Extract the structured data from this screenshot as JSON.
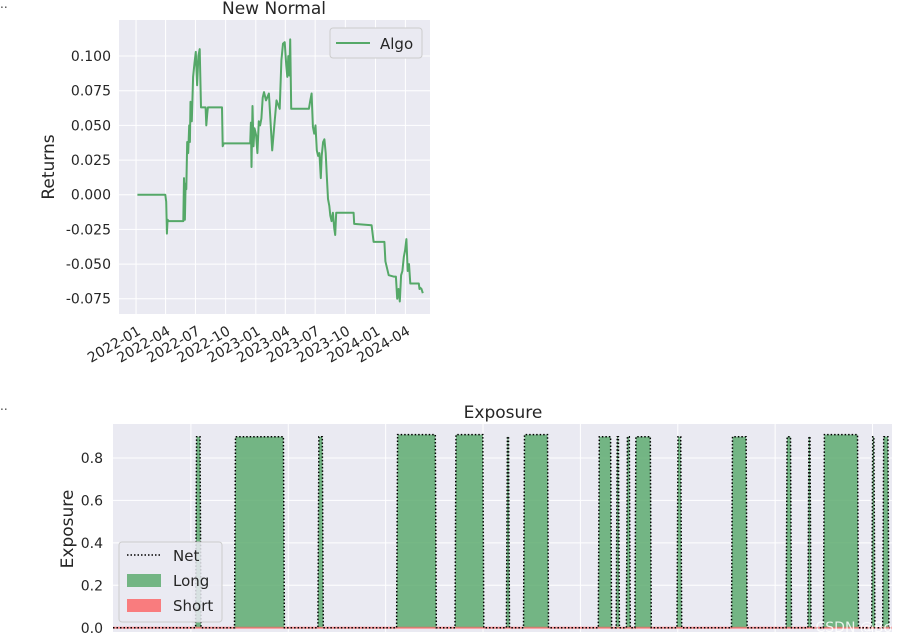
{
  "corner_marks": [
    "..",
    ".."
  ],
  "watermark": "CSDN @Bony-",
  "colors": {
    "panel_bg": "#eaeaf2",
    "grid": "#ffffff",
    "algo": "#55a868",
    "long_fill": "#55a868",
    "short_fill": "#ff4d4d",
    "net": "#000000"
  },
  "chart_data": [
    {
      "type": "line",
      "title": "New Normal",
      "xlabel": "",
      "ylabel": "Returns",
      "ylim": [
        -0.086,
        0.126
      ],
      "y_ticks": [
        -0.075,
        -0.05,
        -0.025,
        0.0,
        0.025,
        0.05,
        0.075,
        0.1
      ],
      "y_tick_labels": [
        "-0.075",
        "-0.050",
        "-0.025",
        "0.000",
        "0.025",
        "0.050",
        "0.075",
        "0.100"
      ],
      "x_range": [
        "2021-11-10",
        "2024-06-15"
      ],
      "x_ticks": [
        "2022-01-01",
        "2022-04-01",
        "2022-07-01",
        "2022-10-01",
        "2023-01-01",
        "2023-04-01",
        "2023-07-01",
        "2023-10-01",
        "2024-01-01",
        "2024-04-01"
      ],
      "x_tick_labels": [
        "2022-01",
        "2022-04",
        "2022-07",
        "2022-10",
        "2023-01",
        "2023-04",
        "2023-07",
        "2023-10",
        "2024-01",
        "2024-04"
      ],
      "grid": true,
      "legend_position": "top-right",
      "series": [
        {
          "name": "Algo",
          "color": "#55a868",
          "x": [
            "2022-01-05",
            "2022-03-31",
            "2022-04-03",
            "2022-04-05",
            "2022-04-07",
            "2022-04-10",
            "2022-05-25",
            "2022-05-27",
            "2022-05-30",
            "2022-06-01",
            "2022-06-03",
            "2022-06-06",
            "2022-06-09",
            "2022-06-12",
            "2022-06-14",
            "2022-06-16",
            "2022-06-20",
            "2022-06-24",
            "2022-06-28",
            "2022-07-02",
            "2022-07-06",
            "2022-07-10",
            "2022-07-14",
            "2022-07-18",
            "2022-07-21",
            "2022-07-24",
            "2022-07-28",
            "2022-08-01",
            "2022-08-03",
            "2022-08-06",
            "2022-08-08",
            "2022-09-20",
            "2022-09-22",
            "2022-09-25",
            "2022-09-28",
            "2022-10-01",
            "2022-12-15",
            "2022-12-17",
            "2022-12-19",
            "2022-12-22",
            "2022-12-25",
            "2022-12-28",
            "2023-01-02",
            "2023-01-06",
            "2023-01-10",
            "2023-01-14",
            "2023-01-18",
            "2023-01-22",
            "2023-01-26",
            "2023-02-01",
            "2023-02-10",
            "2023-02-20",
            "2023-02-28",
            "2023-03-05",
            "2023-03-10",
            "2023-03-15",
            "2023-03-20",
            "2023-03-25",
            "2023-03-30",
            "2023-04-04",
            "2023-04-07",
            "2023-04-10",
            "2023-04-13",
            "2023-04-16",
            "2023-04-19",
            "2023-06-12",
            "2023-06-16",
            "2023-06-20",
            "2023-06-24",
            "2023-06-28",
            "2023-07-02",
            "2023-07-06",
            "2023-07-10",
            "2023-07-14",
            "2023-07-18",
            "2023-07-21",
            "2023-07-25",
            "2023-07-29",
            "2023-08-02",
            "2023-08-05",
            "2023-08-09",
            "2023-08-13",
            "2023-08-16",
            "2023-08-20",
            "2023-08-24",
            "2023-08-28",
            "2023-08-31",
            "2023-09-03",
            "2023-10-26",
            "2023-10-28",
            "2023-12-20",
            "2023-12-23",
            "2023-12-26",
            "2024-01-28",
            "2024-01-31",
            "2024-02-10",
            "2024-02-25",
            "2024-03-03",
            "2024-03-07",
            "2024-03-11",
            "2024-03-15",
            "2024-03-19",
            "2024-03-23",
            "2024-03-27",
            "2024-03-31",
            "2024-04-04",
            "2024-04-08",
            "2024-04-12",
            "2024-04-16",
            "2024-05-12",
            "2024-05-14",
            "2024-05-16",
            "2024-05-20",
            "2024-05-24"
          ],
          "y": [
            0.0,
            0.0,
            -0.005,
            -0.028,
            -0.018,
            -0.019,
            -0.019,
            0.012,
            -0.018,
            0.008,
            0.004,
            0.038,
            0.03,
            0.05,
            0.038,
            0.067,
            0.053,
            0.085,
            0.095,
            0.103,
            0.079,
            0.1,
            0.105,
            0.063,
            0.063,
            0.063,
            0.063,
            0.063,
            0.05,
            0.058,
            0.063,
            0.063,
            0.035,
            0.037,
            0.037,
            0.037,
            0.037,
            0.052,
            0.02,
            0.064,
            0.035,
            0.048,
            0.043,
            0.03,
            0.053,
            0.05,
            0.055,
            0.07,
            0.074,
            0.068,
            0.073,
            0.032,
            0.054,
            0.068,
            0.065,
            0.062,
            0.097,
            0.109,
            0.11,
            0.093,
            0.085,
            0.1,
            0.086,
            0.112,
            0.062,
            0.062,
            0.068,
            0.073,
            0.049,
            0.044,
            0.05,
            0.032,
            0.028,
            0.03,
            0.012,
            0.028,
            0.038,
            0.04,
            0.03,
            0.015,
            -0.003,
            -0.008,
            -0.015,
            -0.019,
            -0.013,
            -0.024,
            -0.029,
            -0.013,
            -0.013,
            -0.021,
            -0.022,
            -0.028,
            -0.034,
            -0.034,
            -0.048,
            -0.058,
            -0.059,
            -0.059,
            -0.075,
            -0.068,
            -0.077,
            -0.058,
            -0.055,
            -0.045,
            -0.04,
            -0.032,
            -0.055,
            -0.05,
            -0.064,
            -0.064,
            -0.068,
            -0.067,
            -0.068,
            -0.071
          ]
        }
      ]
    },
    {
      "type": "area",
      "title": "Exposure",
      "xlabel": "",
      "ylabel": "Exposure",
      "ylim": [
        -0.02,
        0.96
      ],
      "y_ticks": [
        0.0,
        0.2,
        0.4,
        0.6,
        0.8
      ],
      "y_tick_labels": [
        "0.0",
        "0.2",
        "0.4",
        "0.6",
        "0.8"
      ],
      "x_range": [
        0,
        100
      ],
      "grid": true,
      "legend_position": "lower-left",
      "series": [
        {
          "name": "Net",
          "style": "dotted",
          "color": "#000000"
        },
        {
          "name": "Long",
          "color": "#55a868"
        },
        {
          "name": "Short",
          "color": "#ff4d4d"
        }
      ],
      "long_segments": [
        {
          "start": 10.6,
          "end": 11.3,
          "level": 0.9
        },
        {
          "start": 15.6,
          "end": 22.0,
          "level": 0.9
        },
        {
          "start": 26.3,
          "end": 27.0,
          "level": 0.9
        },
        {
          "start": 36.4,
          "end": 41.5,
          "level": 0.91
        },
        {
          "start": 43.9,
          "end": 47.6,
          "level": 0.91
        },
        {
          "start": 50.5,
          "end": 50.9,
          "level": 0.9
        },
        {
          "start": 52.7,
          "end": 55.9,
          "level": 0.91
        },
        {
          "start": 62.3,
          "end": 64.0,
          "level": 0.9
        },
        {
          "start": 64.6,
          "end": 65.0,
          "level": 0.9
        },
        {
          "start": 65.9,
          "end": 66.4,
          "level": 0.9
        },
        {
          "start": 67.0,
          "end": 69.1,
          "level": 0.9
        },
        {
          "start": 72.4,
          "end": 73.0,
          "level": 0.9
        },
        {
          "start": 79.4,
          "end": 81.4,
          "level": 0.9
        },
        {
          "start": 86.4,
          "end": 87.1,
          "level": 0.9
        },
        {
          "start": 89.2,
          "end": 89.6,
          "level": 0.9
        },
        {
          "start": 91.2,
          "end": 95.7,
          "level": 0.91
        },
        {
          "start": 97.4,
          "end": 97.8,
          "level": 0.9
        },
        {
          "start": 98.8,
          "end": 99.6,
          "level": 0.9
        }
      ],
      "short_level": 0.0
    }
  ]
}
